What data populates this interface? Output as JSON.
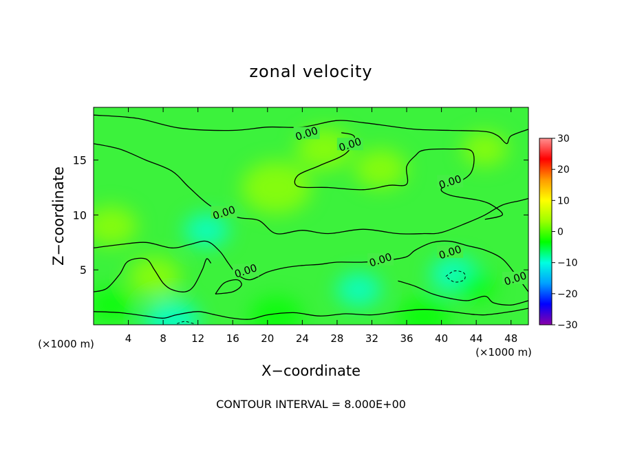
{
  "chart_data": {
    "type": "heatmap",
    "title": "zonal velocity",
    "xlabel": "X−coordinate",
    "ylabel": "Z−coordinate",
    "x_unit_left": "(×1000 m)",
    "x_unit_right": "(×1000 m)",
    "footer": "CONTOUR INTERVAL = 8.000E+00",
    "xlim": [
      0,
      50
    ],
    "ylim": [
      0,
      19.8
    ],
    "x_ticks": [
      "4",
      "8",
      "12",
      "16",
      "20",
      "24",
      "28",
      "32",
      "36",
      "40",
      "44",
      "48"
    ],
    "x_tick_values": [
      4,
      8,
      12,
      16,
      20,
      24,
      28,
      32,
      36,
      40,
      44,
      48
    ],
    "y_ticks": [
      "5",
      "10",
      "15"
    ],
    "y_tick_values": [
      5,
      10,
      15
    ],
    "colorbar": {
      "min": -30,
      "max": 30,
      "tick_labels": [
        "30",
        "20",
        "10",
        "0",
        "−10",
        "−20",
        "−30"
      ],
      "tick_values": [
        30,
        20,
        10,
        0,
        -10,
        -20,
        -30
      ],
      "colors": [
        "#8a00a8",
        "#0000ff",
        "#00a0ff",
        "#00ffe0",
        "#00ff00",
        "#9cff00",
        "#ffff00",
        "#ff9a00",
        "#ff0000",
        "#ff9090"
      ]
    },
    "contour_labels": [
      {
        "text": "0.00",
        "x": 24.5,
        "y": 17.4
      },
      {
        "text": "0.00",
        "x": 29.5,
        "y": 16.4
      },
      {
        "text": "0.00",
        "x": 41.0,
        "y": 13.0
      },
      {
        "text": "0.00",
        "x": 15.0,
        "y": 10.2
      },
      {
        "text": "0.00",
        "x": 17.5,
        "y": 4.9
      },
      {
        "text": "0.00",
        "x": 33.0,
        "y": 5.9
      },
      {
        "text": "0.00",
        "x": 41.0,
        "y": 6.6
      },
      {
        "text": "0.00",
        "x": 48.5,
        "y": 4.2
      }
    ],
    "contours": [
      [
        [
          0,
          16.5
        ],
        [
          3,
          16.0
        ],
        [
          6,
          15.0
        ],
        [
          9,
          14.0
        ],
        [
          11,
          12.5
        ],
        [
          13.5,
          10.8
        ],
        [
          16.5,
          9.8
        ],
        [
          19,
          9.5
        ],
        [
          21,
          8.3
        ],
        [
          24,
          8.6
        ],
        [
          27,
          8.3
        ],
        [
          31,
          8.7
        ],
        [
          35,
          8.3
        ],
        [
          38,
          8.3
        ],
        [
          40,
          8.4
        ],
        [
          43,
          9.3
        ],
        [
          45,
          10.0
        ],
        [
          47,
          10.9
        ],
        [
          49,
          11.3
        ],
        [
          50,
          11.5
        ]
      ],
      [
        [
          0,
          19.1
        ],
        [
          5,
          18.8
        ],
        [
          10,
          17.9
        ],
        [
          16,
          17.7
        ],
        [
          20,
          18.0
        ],
        [
          24,
          18.0
        ],
        [
          28,
          18.6
        ],
        [
          31,
          18.4
        ],
        [
          33,
          18.2
        ],
        [
          37,
          17.8
        ],
        [
          41,
          17.7
        ],
        [
          45,
          17.6
        ],
        [
          46.5,
          17.2
        ],
        [
          47.5,
          16.5
        ],
        [
          48,
          17.2
        ],
        [
          50,
          17.8
        ]
      ],
      [
        [
          28.5,
          17.5
        ],
        [
          30,
          17.1
        ],
        [
          29,
          15.6
        ],
        [
          26,
          14.5
        ],
        [
          23.5,
          13.6
        ],
        [
          23.5,
          12.6
        ],
        [
          27,
          12.5
        ],
        [
          31,
          12.3
        ],
        [
          34,
          12.7
        ],
        [
          36,
          12.8
        ],
        [
          36,
          14.4
        ],
        [
          37,
          15.4
        ],
        [
          38,
          15.9
        ],
        [
          41,
          16.0
        ],
        [
          43.5,
          15.8
        ],
        [
          43.5,
          14.0
        ],
        [
          42,
          13.0
        ],
        [
          40,
          12.4
        ],
        [
          41,
          11.8
        ],
        [
          44.5,
          11.3
        ],
        [
          46,
          10.8
        ],
        [
          47,
          10.0
        ],
        [
          45,
          9.6
        ]
      ],
      [
        [
          0,
          7.0
        ],
        [
          3,
          7.3
        ],
        [
          6,
          7.5
        ],
        [
          9,
          7.0
        ],
        [
          11,
          7.3
        ],
        [
          13,
          7.6
        ],
        [
          14.5,
          6.7
        ],
        [
          15.5,
          5.6
        ],
        [
          16.5,
          4.6
        ],
        [
          18,
          4.1
        ],
        [
          20,
          4.8
        ],
        [
          22,
          5.2
        ],
        [
          24,
          5.4
        ],
        [
          26,
          5.5
        ],
        [
          28,
          5.7
        ],
        [
          31,
          5.7
        ],
        [
          34,
          5.9
        ],
        [
          36,
          6.2
        ],
        [
          37,
          6.8
        ],
        [
          39,
          7.5
        ],
        [
          41,
          7.6
        ],
        [
          43,
          7.2
        ],
        [
          45,
          6.8
        ],
        [
          47,
          6.0
        ],
        [
          48.5,
          4.6
        ],
        [
          50,
          3.0
        ]
      ],
      [
        [
          0,
          3.0
        ],
        [
          1.5,
          3.3
        ],
        [
          3,
          4.6
        ],
        [
          4,
          5.8
        ],
        [
          6,
          6.0
        ],
        [
          7,
          5.0
        ],
        [
          8,
          3.8
        ],
        [
          9,
          3.2
        ],
        [
          10.5,
          3.0
        ],
        [
          11.5,
          3.5
        ],
        [
          12.5,
          5.0
        ],
        [
          13,
          6.0
        ],
        [
          13.5,
          5.6
        ]
      ],
      [
        [
          0,
          1.2
        ],
        [
          3,
          1.1
        ],
        [
          6,
          0.8
        ],
        [
          8,
          0.6
        ],
        [
          9.5,
          0.9
        ],
        [
          12,
          1.2
        ],
        [
          14,
          0.9
        ],
        [
          16,
          0.6
        ],
        [
          18,
          0.5
        ],
        [
          20,
          0.9
        ],
        [
          23,
          1.1
        ],
        [
          26,
          0.8
        ],
        [
          29,
          1.0
        ],
        [
          32,
          0.9
        ],
        [
          35,
          1.2
        ],
        [
          38,
          1.4
        ],
        [
          41,
          1.2
        ],
        [
          43,
          1.0
        ],
        [
          45,
          0.9
        ],
        [
          48,
          1.2
        ],
        [
          50,
          1.5
        ]
      ],
      [
        [
          14,
          2.8
        ],
        [
          15,
          3.8
        ],
        [
          16.5,
          4.1
        ],
        [
          17,
          3.6
        ],
        [
          16,
          3.0
        ],
        [
          14,
          2.8
        ]
      ],
      [
        [
          35,
          4.0
        ],
        [
          37,
          3.5
        ],
        [
          39,
          2.8
        ],
        [
          41,
          2.4
        ],
        [
          43,
          2.2
        ],
        [
          45,
          2.6
        ],
        [
          46,
          2.0
        ],
        [
          48,
          1.8
        ],
        [
          50,
          2.2
        ]
      ]
    ],
    "dashed_contours": [
      [
        [
          40.5,
          4.4
        ],
        [
          41.5,
          4.9
        ],
        [
          42.6,
          4.7
        ],
        [
          42.6,
          4.1
        ],
        [
          41.5,
          3.9
        ],
        [
          40.5,
          4.4
        ]
      ],
      [
        [
          9.6,
          0.1
        ],
        [
          10.5,
          0.3
        ],
        [
          11.5,
          0.1
        ]
      ]
    ],
    "color_blobs": [
      {
        "x": 13,
        "y": 8.6,
        "v": -8,
        "r": 2.6
      },
      {
        "x": 30.5,
        "y": 3.2,
        "v": -9,
        "r": 2.6
      },
      {
        "x": 41.5,
        "y": 4.6,
        "v": -11,
        "r": 2.8
      },
      {
        "x": 9,
        "y": 0.4,
        "v": -7,
        "r": 3.2
      },
      {
        "x": 2,
        "y": 1.8,
        "v": -5,
        "r": 2.6
      },
      {
        "x": 21,
        "y": 0.8,
        "v": -6,
        "r": 3
      },
      {
        "x": 38,
        "y": 0.7,
        "v": -5,
        "r": 3
      },
      {
        "x": 44,
        "y": 3.5,
        "v": -6,
        "r": 2.2
      },
      {
        "x": 26.5,
        "y": 16.0,
        "v": 5,
        "r": 3.2
      },
      {
        "x": 21,
        "y": 12.5,
        "v": 4,
        "r": 4
      },
      {
        "x": 7,
        "y": 4.4,
        "v": 5,
        "r": 3
      },
      {
        "x": 33,
        "y": 14.2,
        "v": 4,
        "r": 3
      },
      {
        "x": 45,
        "y": 16.0,
        "v": 4,
        "r": 2.6
      },
      {
        "x": 2,
        "y": 9,
        "v": 3,
        "r": 3
      }
    ]
  }
}
